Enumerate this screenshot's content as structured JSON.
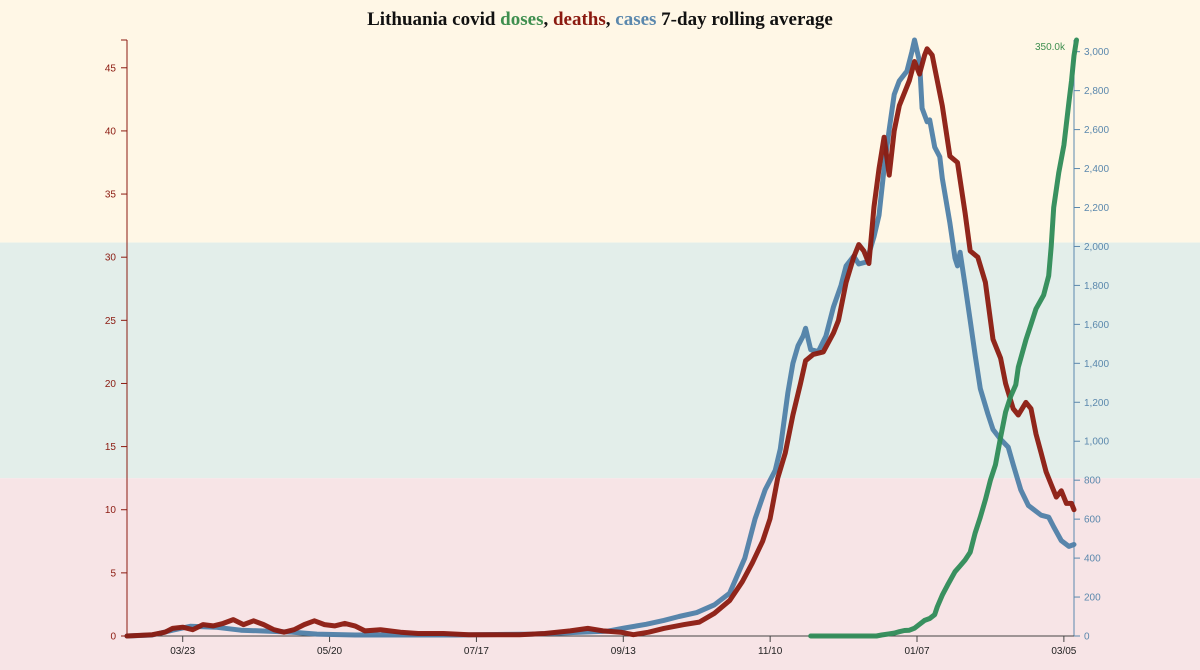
{
  "chart_data": {
    "type": "line",
    "title_parts": [
      {
        "text": "Lithuania covid ",
        "color": "#111111"
      },
      {
        "text": "doses",
        "color": "#3f8f4f"
      },
      {
        "text": ", ",
        "color": "#111111"
      },
      {
        "text": "deaths",
        "color": "#8b1a10"
      },
      {
        "text": ", ",
        "color": "#111111"
      },
      {
        "text": "cases",
        "color": "#5b88ad"
      },
      {
        "text": " 7-day rolling average",
        "color": "#111111"
      }
    ],
    "x_tick_labels": [
      "03/23",
      "05/20",
      "07/17",
      "09/13",
      "11/10",
      "01/07",
      "03/05"
    ],
    "x_tick_day_index": [
      22,
      80,
      138,
      196,
      254,
      312,
      370
    ],
    "x_range_days": [
      0,
      374
    ],
    "left_axis": {
      "ticks": [
        0,
        5,
        10,
        15,
        20,
        25,
        30,
        35,
        40,
        45
      ],
      "range": [
        0,
        47.2
      ],
      "color": "#8b1a10"
    },
    "right_axis": {
      "ticks": [
        "0",
        "200",
        "400",
        "600",
        "800",
        "1,000",
        "1,200",
        "1,400",
        "1,600",
        "1,800",
        "2,000",
        "2,200",
        "2,400",
        "2,600",
        "2,800",
        "3,000"
      ],
      "range": [
        0,
        3060
      ],
      "color": "#5b88ad"
    },
    "doses_max_label": "350.0k",
    "doses_range": [
      0,
      350000
    ],
    "bands": [
      {
        "color": "#fff7e6",
        "from": 2020,
        "to": 3060
      },
      {
        "color": "#e3eeea",
        "from": 810,
        "to": 2020
      },
      {
        "color": "#f7e4e6",
        "from": 0,
        "to": 810
      }
    ],
    "series": [
      {
        "name": "cases",
        "color": "#4f7fa8",
        "axis": "right",
        "points": [
          [
            0,
            0
          ],
          [
            10,
            5
          ],
          [
            18,
            30
          ],
          [
            25,
            50
          ],
          [
            35,
            45
          ],
          [
            45,
            30
          ],
          [
            55,
            25
          ],
          [
            65,
            20
          ],
          [
            75,
            10
          ],
          [
            90,
            5
          ],
          [
            110,
            5
          ],
          [
            130,
            5
          ],
          [
            150,
            8
          ],
          [
            160,
            10
          ],
          [
            170,
            15
          ],
          [
            180,
            20
          ],
          [
            190,
            25
          ],
          [
            196,
            40
          ],
          [
            205,
            60
          ],
          [
            212,
            80
          ],
          [
            218,
            100
          ],
          [
            225,
            120
          ],
          [
            232,
            160
          ],
          [
            238,
            220
          ],
          [
            240,
            280
          ],
          [
            244,
            400
          ],
          [
            248,
            600
          ],
          [
            252,
            750
          ],
          [
            256,
            850
          ],
          [
            258,
            960
          ],
          [
            261,
            1250
          ],
          [
            263,
            1400
          ],
          [
            265,
            1490
          ],
          [
            267,
            1540
          ],
          [
            268,
            1580
          ],
          [
            270,
            1470
          ],
          [
            273,
            1460
          ],
          [
            276,
            1540
          ],
          [
            279,
            1690
          ],
          [
            282,
            1800
          ],
          [
            284,
            1900
          ],
          [
            287,
            1950
          ],
          [
            289,
            1910
          ],
          [
            292,
            1920
          ],
          [
            295,
            2050
          ],
          [
            297,
            2160
          ],
          [
            299,
            2400
          ],
          [
            301,
            2600
          ],
          [
            303,
            2780
          ],
          [
            305,
            2850
          ],
          [
            308,
            2900
          ],
          [
            310,
            3000
          ],
          [
            311,
            3060
          ],
          [
            313,
            2950
          ],
          [
            314,
            2710
          ],
          [
            316,
            2640
          ],
          [
            317,
            2650
          ],
          [
            319,
            2510
          ],
          [
            321,
            2460
          ],
          [
            322,
            2350
          ],
          [
            325,
            2120
          ],
          [
            327,
            1940
          ],
          [
            328,
            1900
          ],
          [
            329,
            1970
          ],
          [
            331,
            1800
          ],
          [
            333,
            1620
          ],
          [
            335,
            1440
          ],
          [
            337,
            1270
          ],
          [
            340,
            1140
          ],
          [
            342,
            1060
          ],
          [
            345,
            1010
          ],
          [
            348,
            970
          ],
          [
            350,
            880
          ],
          [
            353,
            750
          ],
          [
            356,
            670
          ],
          [
            358,
            650
          ],
          [
            361,
            620
          ],
          [
            364,
            610
          ],
          [
            366,
            560
          ],
          [
            369,
            490
          ],
          [
            372,
            460
          ],
          [
            374,
            470
          ]
        ]
      },
      {
        "name": "deaths",
        "color": "#8b1a10",
        "axis": "left",
        "points": [
          [
            0,
            0
          ],
          [
            10,
            0.1
          ],
          [
            15,
            0.3
          ],
          [
            18,
            0.6
          ],
          [
            22,
            0.7
          ],
          [
            26,
            0.5
          ],
          [
            30,
            0.9
          ],
          [
            34,
            0.8
          ],
          [
            38,
            1.0
          ],
          [
            42,
            1.3
          ],
          [
            46,
            0.9
          ],
          [
            50,
            1.2
          ],
          [
            54,
            0.9
          ],
          [
            58,
            0.5
          ],
          [
            62,
            0.3
          ],
          [
            66,
            0.5
          ],
          [
            70,
            0.9
          ],
          [
            74,
            1.2
          ],
          [
            78,
            0.9
          ],
          [
            82,
            0.8
          ],
          [
            86,
            1.0
          ],
          [
            90,
            0.8
          ],
          [
            94,
            0.4
          ],
          [
            100,
            0.5
          ],
          [
            108,
            0.3
          ],
          [
            115,
            0.2
          ],
          [
            125,
            0.2
          ],
          [
            135,
            0.1
          ],
          [
            145,
            0.1
          ],
          [
            155,
            0.1
          ],
          [
            165,
            0.2
          ],
          [
            175,
            0.4
          ],
          [
            182,
            0.6
          ],
          [
            188,
            0.4
          ],
          [
            195,
            0.3
          ],
          [
            200,
            0.1
          ],
          [
            206,
            0.3
          ],
          [
            212,
            0.6
          ],
          [
            220,
            0.9
          ],
          [
            226,
            1.1
          ],
          [
            232,
            1.8
          ],
          [
            238,
            2.8
          ],
          [
            243,
            4.3
          ],
          [
            247,
            5.8
          ],
          [
            251,
            7.5
          ],
          [
            254,
            9.3
          ],
          [
            257,
            12.5
          ],
          [
            260,
            14.5
          ],
          [
            263,
            17.5
          ],
          [
            266,
            20.0
          ],
          [
            268,
            21.8
          ],
          [
            271,
            22.3
          ],
          [
            275,
            22.5
          ],
          [
            279,
            24.0
          ],
          [
            281,
            25.0
          ],
          [
            284,
            28.0
          ],
          [
            287,
            30.0
          ],
          [
            289,
            31.0
          ],
          [
            291,
            30.5
          ],
          [
            293,
            29.5
          ],
          [
            295,
            34.0
          ],
          [
            297,
            37.0
          ],
          [
            299,
            39.5
          ],
          [
            301,
            36.5
          ],
          [
            303,
            40.0
          ],
          [
            305,
            42.0
          ],
          [
            308,
            43.5
          ],
          [
            309,
            44.0
          ],
          [
            311,
            45.5
          ],
          [
            313,
            44.5
          ],
          [
            315,
            46.0
          ],
          [
            316,
            46.5
          ],
          [
            318,
            46.0
          ],
          [
            319,
            45.0
          ],
          [
            322,
            42.0
          ],
          [
            325,
            38.0
          ],
          [
            328,
            37.5
          ],
          [
            331,
            33.5
          ],
          [
            333,
            30.5
          ],
          [
            336,
            30.0
          ],
          [
            339,
            28.0
          ],
          [
            342,
            23.5
          ],
          [
            345,
            22.0
          ],
          [
            347,
            20.0
          ],
          [
            350,
            18.0
          ],
          [
            352,
            17.5
          ],
          [
            355,
            18.5
          ],
          [
            357,
            18.0
          ],
          [
            359,
            16.0
          ],
          [
            361,
            14.5
          ],
          [
            363,
            13.0
          ],
          [
            365,
            12.0
          ],
          [
            367,
            11.0
          ],
          [
            369,
            11.5
          ],
          [
            371,
            10.5
          ],
          [
            373,
            10.5
          ],
          [
            374,
            10.0
          ]
        ]
      },
      {
        "name": "doses",
        "color": "#2e8b57",
        "axis": "right",
        "points": [
          [
            270,
            0
          ],
          [
            296,
            0
          ],
          [
            298,
            5
          ],
          [
            303,
            15
          ],
          [
            305,
            22
          ],
          [
            307,
            28
          ],
          [
            309,
            30
          ],
          [
            311,
            40
          ],
          [
            313,
            60
          ],
          [
            315,
            80
          ],
          [
            317,
            90
          ],
          [
            319,
            110
          ],
          [
            320,
            150
          ],
          [
            322,
            210
          ],
          [
            324,
            260
          ],
          [
            327,
            330
          ],
          [
            329,
            360
          ],
          [
            331,
            390
          ],
          [
            333,
            430
          ],
          [
            335,
            530
          ],
          [
            337,
            610
          ],
          [
            339,
            700
          ],
          [
            341,
            800
          ],
          [
            343,
            880
          ],
          [
            345,
            1020
          ],
          [
            347,
            1150
          ],
          [
            349,
            1230
          ],
          [
            351,
            1290
          ],
          [
            352,
            1380
          ],
          [
            355,
            1520
          ],
          [
            357,
            1600
          ],
          [
            359,
            1680
          ],
          [
            362,
            1750
          ],
          [
            364,
            1850
          ],
          [
            365,
            2000
          ],
          [
            366,
            2200
          ],
          [
            368,
            2380
          ],
          [
            370,
            2520
          ],
          [
            372,
            2740
          ],
          [
            373,
            2850
          ],
          [
            374,
            2980
          ],
          [
            375,
            3060
          ]
        ]
      }
    ]
  }
}
